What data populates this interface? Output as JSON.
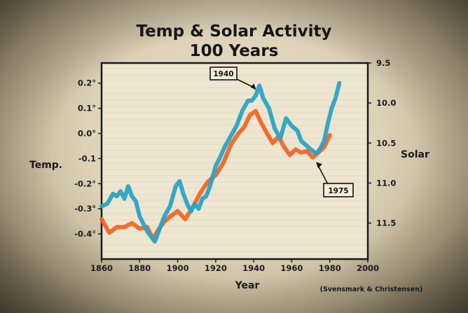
{
  "chart_data": {
    "type": "line",
    "title_line1": "Temp & Solar Activity",
    "title_line2": "100 Years",
    "xlabel": "Year",
    "ylabel_left": "Temp.",
    "ylabel_right": "Solar",
    "credit": "(Svensmark & Christensen)",
    "xlim": [
      1860,
      2000
    ],
    "x_ticks": [
      "1860",
      "1880",
      "1900",
      "1920",
      "1940",
      "1960",
      "1980",
      "2000"
    ],
    "ylim_left": [
      -0.5,
      0.28
    ],
    "y_left_ticks": [
      "0.2°",
      "0.1°",
      "0.0°",
      "-0.1",
      "-0.2°",
      "-0.3°",
      "-0.4°"
    ],
    "y_left_tick_values": [
      0.2,
      0.1,
      0.0,
      -0.1,
      -0.2,
      -0.3,
      -0.4
    ],
    "ylim_right_inverted": [
      9.5,
      11.95
    ],
    "y_right_ticks": [
      "9.5",
      "10.0",
      "10.5",
      "11.0",
      "11.5"
    ],
    "y_right_tick_values": [
      9.5,
      10.0,
      10.5,
      11.0,
      11.5
    ],
    "colors": {
      "temp": "#2aa3c6",
      "solar": "#f06628",
      "frame": "#1a1a1a",
      "plot_bg": "#eee6d0"
    },
    "series": [
      {
        "key": "temp",
        "axis": "left",
        "x": [
          1860,
          1863,
          1866,
          1868,
          1870,
          1872,
          1874,
          1876,
          1878,
          1880,
          1882,
          1884,
          1886,
          1888,
          1890,
          1893,
          1896,
          1899,
          1901,
          1903,
          1905,
          1907,
          1909,
          1911,
          1913,
          1915,
          1917,
          1920,
          1922,
          1925,
          1928,
          1931,
          1934,
          1937,
          1939,
          1941,
          1943,
          1945,
          1948,
          1951,
          1954,
          1957,
          1960,
          1963,
          1965,
          1968,
          1971,
          1973,
          1975,
          1977,
          1979,
          1981,
          1983,
          1985
        ],
        "y": [
          -0.29,
          -0.28,
          -0.24,
          -0.25,
          -0.23,
          -0.26,
          -0.21,
          -0.25,
          -0.27,
          -0.33,
          -0.36,
          -0.39,
          -0.41,
          -0.43,
          -0.39,
          -0.33,
          -0.29,
          -0.21,
          -0.19,
          -0.24,
          -0.28,
          -0.31,
          -0.28,
          -0.3,
          -0.26,
          -0.25,
          -0.21,
          -0.13,
          -0.1,
          -0.05,
          -0.01,
          0.03,
          0.09,
          0.13,
          0.13,
          0.15,
          0.19,
          0.14,
          0.1,
          0.02,
          -0.02,
          0.06,
          0.03,
          0.01,
          -0.03,
          -0.05,
          -0.07,
          -0.08,
          -0.06,
          -0.03,
          0.04,
          0.1,
          0.14,
          0.2
        ]
      },
      {
        "key": "solar",
        "axis": "right",
        "x": [
          1860,
          1864,
          1868,
          1872,
          1876,
          1880,
          1884,
          1887,
          1890,
          1893,
          1896,
          1900,
          1904,
          1908,
          1912,
          1916,
          1920,
          1924,
          1928,
          1932,
          1935,
          1938,
          1941,
          1944,
          1947,
          1950,
          1953,
          1956,
          1959,
          1962,
          1965,
          1968,
          1971,
          1974,
          1977,
          1980
        ],
        "y": [
          11.45,
          11.62,
          11.55,
          11.55,
          11.5,
          11.57,
          11.55,
          11.7,
          11.58,
          11.48,
          11.42,
          11.35,
          11.45,
          11.3,
          11.12,
          10.98,
          10.9,
          10.75,
          10.52,
          10.38,
          10.3,
          10.15,
          10.1,
          10.25,
          10.38,
          10.5,
          10.42,
          10.55,
          10.65,
          10.58,
          10.62,
          10.6,
          10.68,
          10.62,
          10.55,
          10.4
        ]
      }
    ],
    "annotations": [
      {
        "label": "1940",
        "points_to": [
          1942,
          0.17
        ]
      },
      {
        "label": "1975",
        "points_to": [
          1972,
          10.72
        ]
      }
    ]
  }
}
